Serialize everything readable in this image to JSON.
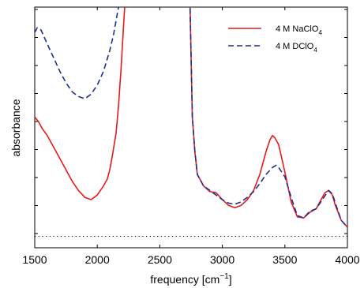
{
  "chart_data": {
    "type": "line",
    "xlabel": "frequency [cm",
    "xlabel_sup": "−1",
    "xlabel_close": "]",
    "ylabel": "absorbance",
    "xlim": [
      1500,
      4000
    ],
    "xticks": [
      1500,
      2000,
      2500,
      3000,
      3500,
      4000
    ],
    "ylim": [
      -0.05,
      1.0
    ],
    "y_tick_labels_shown": false,
    "grid": false,
    "legend_placement": "top-right",
    "baseline": {
      "y": 0,
      "style": "dotted"
    },
    "series": [
      {
        "name_base": "4 M NaClO",
        "name_sub": "4",
        "color": "#e41a1c",
        "dash": "solid",
        "x": [
          1500,
          1530,
          1560,
          1600,
          1650,
          1700,
          1750,
          1800,
          1850,
          1900,
          1950,
          2000,
          2050,
          2080,
          2100,
          2120,
          2150,
          2170,
          2190,
          2210,
          2225,
          2740,
          2760,
          2780,
          2800,
          2850,
          2900,
          2950,
          3000,
          3050,
          3100,
          3150,
          3200,
          3250,
          3300,
          3350,
          3380,
          3400,
          3420,
          3450,
          3500,
          3550,
          3600,
          3650,
          3700,
          3750,
          3800,
          3820,
          3850,
          3880,
          3900,
          3950,
          4000
        ],
        "y": [
          0.52,
          0.5,
          0.47,
          0.44,
          0.39,
          0.34,
          0.29,
          0.24,
          0.2,
          0.17,
          0.16,
          0.18,
          0.22,
          0.25,
          0.29,
          0.35,
          0.45,
          0.57,
          0.73,
          0.92,
          1.05,
          1.05,
          0.52,
          0.37,
          0.27,
          0.22,
          0.195,
          0.19,
          0.16,
          0.135,
          0.125,
          0.135,
          0.16,
          0.2,
          0.27,
          0.37,
          0.42,
          0.44,
          0.43,
          0.4,
          0.28,
          0.15,
          0.085,
          0.08,
          0.105,
          0.12,
          0.17,
          0.19,
          0.2,
          0.18,
          0.14,
          0.07,
          0.04
        ]
      },
      {
        "name_base": "4 M DClO",
        "name_sub": "4",
        "color": "#1f2e8c",
        "dash": "dashed",
        "x": [
          1500,
          1520,
          1550,
          1600,
          1650,
          1700,
          1750,
          1800,
          1850,
          1900,
          1950,
          2000,
          2050,
          2100,
          2130,
          2160,
          2180,
          2190,
          2740,
          2760,
          2780,
          2800,
          2850,
          2900,
          2950,
          3000,
          3050,
          3100,
          3150,
          3200,
          3250,
          3300,
          3350,
          3400,
          3430,
          3450,
          3500,
          3550,
          3600,
          3650,
          3700,
          3750,
          3800,
          3850,
          3880,
          3900,
          3950,
          4000
        ],
        "y": [
          0.89,
          0.91,
          0.9,
          0.84,
          0.78,
          0.72,
          0.67,
          0.63,
          0.61,
          0.6,
          0.62,
          0.66,
          0.72,
          0.81,
          0.88,
          0.97,
          1.03,
          1.05,
          1.05,
          0.52,
          0.37,
          0.27,
          0.22,
          0.2,
          0.18,
          0.16,
          0.145,
          0.14,
          0.15,
          0.17,
          0.195,
          0.23,
          0.27,
          0.3,
          0.31,
          0.3,
          0.26,
          0.17,
          0.09,
          0.08,
          0.11,
          0.12,
          0.16,
          0.2,
          0.185,
          0.15,
          0.07,
          0.04
        ]
      }
    ]
  }
}
